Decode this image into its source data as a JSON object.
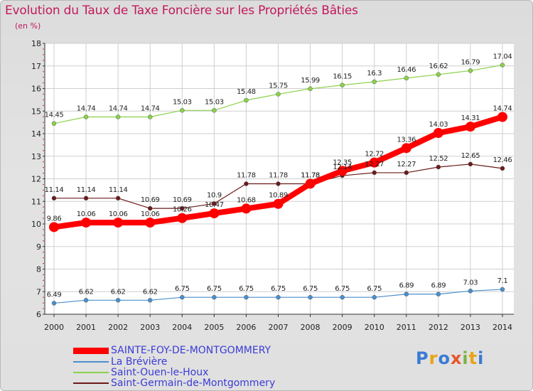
{
  "title": "Evolution du Taux de Taxe Foncière sur les Propriétés Bâties",
  "subtitle": "(en %)",
  "logo": {
    "letters": [
      "P",
      "r",
      "o",
      "x",
      "i",
      "t",
      "i"
    ],
    "colors": [
      "#3a7bd5",
      "#e8a317",
      "#3a7bd5",
      "#e8572a",
      "#7cb342",
      "#e8a317",
      "#3a7bd5"
    ]
  },
  "chart_data": {
    "type": "line",
    "title": "Evolution du Taux de Taxe Foncière sur les Propriétés Bâties",
    "ylabel": "(en %)",
    "xlabel": "",
    "ylim": [
      6,
      18
    ],
    "yticks": [
      6,
      7,
      8,
      9,
      10,
      11,
      12,
      13,
      14,
      15,
      16,
      17,
      18
    ],
    "categories": [
      "2000",
      "2001",
      "2002",
      "2003",
      "2004",
      "2005",
      "2006",
      "2007",
      "2008",
      "2009",
      "2010",
      "2011",
      "2012",
      "2013",
      "2014"
    ],
    "series": [
      {
        "name": "SAINTE-FOY-DE-MONTGOMMERY",
        "color": "#ff0000",
        "values": [
          9.86,
          10.06,
          10.06,
          10.06,
          10.26,
          10.47,
          10.68,
          10.89,
          11.78,
          12.35,
          12.72,
          13.36,
          14.03,
          14.31,
          14.74
        ],
        "labels": [
          "9.86",
          "10.06",
          "10.06",
          "10.06",
          "10.26",
          "10.47",
          "10.68",
          "10.89",
          "11.78",
          "12.35",
          "12.72",
          "13.36",
          "14.03",
          "14.31",
          "14.74"
        ]
      },
      {
        "name": "La Brévière",
        "color": "#4a8fce",
        "values": [
          6.49,
          6.62,
          6.62,
          6.62,
          6.75,
          6.75,
          6.75,
          6.75,
          6.75,
          6.75,
          6.75,
          6.89,
          6.89,
          7.03,
          7.1
        ],
        "labels": [
          "6.49",
          "6.62",
          "6.62",
          "6.62",
          "6.75",
          "6.75",
          "6.75",
          "6.75",
          "6.75",
          "6.75",
          "6.75",
          "6.89",
          "6.89",
          "7.03",
          "7.1"
        ]
      },
      {
        "name": "Saint-Ouen-le-Houx",
        "color": "#8bd14a",
        "values": [
          14.45,
          14.74,
          14.74,
          14.74,
          15.03,
          15.03,
          15.48,
          15.75,
          15.99,
          16.15,
          16.3,
          16.46,
          16.62,
          16.79,
          17.04
        ],
        "labels": [
          "14.45",
          "14.74",
          "14.74",
          "14.74",
          "15.03",
          "15.03",
          "15.48",
          "15.75",
          "15.99",
          "16.15",
          "16.3",
          "16.46",
          "16.62",
          "16.79",
          "17.04"
        ]
      },
      {
        "name": "Saint-Germain-de-Montgommery",
        "color": "#6b1a1a",
        "values": [
          11.14,
          11.14,
          11.14,
          10.69,
          10.69,
          10.9,
          11.78,
          11.78,
          11.78,
          12.14,
          12.27,
          12.27,
          12.52,
          12.65,
          12.46
        ],
        "labels": [
          "11.14",
          "11.14",
          "11.14",
          "10.69",
          "10.69",
          "10.9",
          "11.78",
          "11.78",
          "11.78",
          "12.14",
          "12.27",
          "12.27",
          "12.52",
          "12.65",
          "12.46"
        ]
      }
    ],
    "legend": [
      "SAINTE-FOY-DE-MONTGOMMERY",
      "La Brévière",
      "Saint-Ouen-le-Houx",
      "Saint-Germain-de-Montgommery"
    ],
    "legend_position": "bottom-left"
  }
}
